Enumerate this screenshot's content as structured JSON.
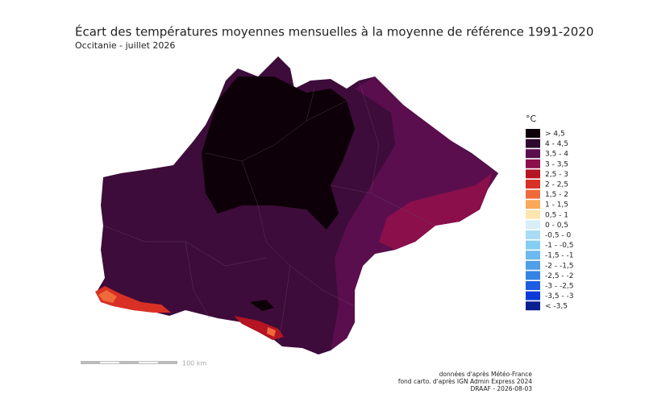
{
  "title": "Écart des températures moyennes mensuelles à la moyenne de référence 1991-2020",
  "subtitle": "Occitanie - juillet 2026",
  "legend": {
    "title": "°C",
    "items": [
      {
        "label": "> 4,5",
        "color": "#0d0008"
      },
      {
        "label": "4 - 4,5",
        "color": "#2d0a2e"
      },
      {
        "label": "3,5 - 4",
        "color": "#5a0e4e"
      },
      {
        "label": "3 - 3,5",
        "color": "#8a0f4a"
      },
      {
        "label": "2,5 - 3",
        "color": "#b51422"
      },
      {
        "label": "2 - 2,5",
        "color": "#d93025"
      },
      {
        "label": "1,5 - 2",
        "color": "#ef6a3a"
      },
      {
        "label": "1 - 1,5",
        "color": "#f8a95a"
      },
      {
        "label": "0,5 - 1",
        "color": "#fde6b0"
      },
      {
        "label": "0 - 0,5",
        "color": "#d8eef8"
      },
      {
        "label": "-0,5 - 0",
        "color": "#a8dcf5"
      },
      {
        "label": "-1 - -0,5",
        "color": "#86cdf3"
      },
      {
        "label": "-1,5 - -1",
        "color": "#6bb9f0"
      },
      {
        "label": "-2 - -1,5",
        "color": "#4f9ee8"
      },
      {
        "label": "-2,5 - -2",
        "color": "#3584e4"
      },
      {
        "label": "-3 - -2,5",
        "color": "#1d5ee0"
      },
      {
        "label": "-3,5 - -3",
        "color": "#0a3bd8"
      },
      {
        "label": "< -3,5",
        "color": "#0a1f8f"
      }
    ]
  },
  "scale": {
    "label": "100 km"
  },
  "credits": [
    "données d'après Météo-France",
    "fond carto. d'après IGN Admin Express 2024",
    "DRAAF - 2026-08-03"
  ]
}
